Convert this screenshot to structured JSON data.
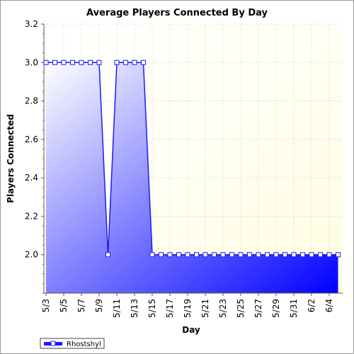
{
  "chart_data": {
    "type": "area",
    "title": "Average Players Connected By Day",
    "xlabel": "Day",
    "ylabel": "Players Connected",
    "ylim": [
      1.8,
      3.2
    ],
    "y_ticks": [
      2.0,
      2.2,
      2.4,
      2.6,
      2.8,
      3.0,
      3.2
    ],
    "y_tick_labels": [
      "2.0",
      "2.2",
      "2.4",
      "2.6",
      "2.8",
      "3.0",
      "3.2"
    ],
    "x_tick_labels": [
      "5/3",
      "5/5",
      "5/7",
      "5/9",
      "5/11",
      "5/13",
      "5/15",
      "5/17",
      "5/19",
      "5/21",
      "5/23",
      "5/25",
      "5/27",
      "5/29",
      "5/31",
      "6/2",
      "6/4"
    ],
    "x": [
      "5/3",
      "5/4",
      "5/5",
      "5/6",
      "5/7",
      "5/8",
      "5/9",
      "5/10",
      "5/11",
      "5/12",
      "5/13",
      "5/14",
      "5/15",
      "5/16",
      "5/17",
      "5/18",
      "5/19",
      "5/20",
      "5/21",
      "5/22",
      "5/23",
      "5/24",
      "5/25",
      "5/26",
      "5/27",
      "5/28",
      "5/29",
      "5/30",
      "5/31",
      "6/1",
      "6/2",
      "6/3",
      "6/4",
      "6/5"
    ],
    "series": [
      {
        "name": "Rhostshyl",
        "values": [
          3.0,
          3.0,
          3.0,
          3.0,
          3.0,
          3.0,
          3.0,
          2.0,
          3.0,
          3.0,
          3.0,
          3.0,
          2.0,
          2.0,
          2.0,
          2.0,
          2.0,
          2.0,
          2.0,
          2.0,
          2.0,
          2.0,
          2.0,
          2.0,
          2.0,
          2.0,
          2.0,
          2.0,
          2.0,
          2.0,
          2.0,
          2.0,
          2.0,
          2.0
        ]
      }
    ],
    "grid": true,
    "legend_position": "bottom-left",
    "colors": {
      "line": "#1a1aff",
      "fill_light": "#ffffff",
      "fill_dark": "#0000ff",
      "plot_bg": "#fffff0"
    }
  }
}
